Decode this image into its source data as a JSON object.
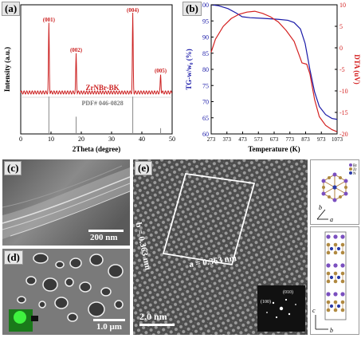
{
  "panels": {
    "a": {
      "label": "(a)",
      "chart_data": {
        "type": "line",
        "xlabel": "2Theta (degree)",
        "ylabel": "Intensity (a.u.)",
        "xlim": [
          0,
          50
        ],
        "xticks": [
          0,
          10,
          20,
          30,
          40,
          50
        ],
        "peaks": [
          {
            "x": 9.3,
            "height": 0.86,
            "label": "(001)"
          },
          {
            "x": 18.3,
            "height": 0.48,
            "label": "(002)"
          },
          {
            "x": 37.0,
            "height": 0.98,
            "label": "(004)"
          },
          {
            "x": 46.2,
            "height": 0.22,
            "label": "(005)"
          }
        ],
        "series_label": "ZrNBr-BK",
        "reference_label": "PDF# 046-0828",
        "reference_lines": [
          {
            "x": 9.3,
            "height": 0.26
          },
          {
            "x": 18.3,
            "height": 0.12
          },
          {
            "x": 37.0,
            "height": 0.26
          },
          {
            "x": 46.2,
            "height": 0.04
          }
        ],
        "series_color": "#cc2222",
        "reference_color": "#888888"
      }
    },
    "b": {
      "label": "(b)",
      "chart_data": {
        "type": "line",
        "xlabel": "Temperature (K)",
        "ylabel_left": "TG-w/w₀ (%)",
        "ylabel_right": "DTA (uV)",
        "xlim": [
          273,
          1073
        ],
        "xticks": [
          273,
          373,
          473,
          573,
          673,
          773,
          873,
          973,
          1073
        ],
        "ylim_left": [
          60,
          100
        ],
        "yticks_left": [
          60,
          65,
          70,
          75,
          80,
          85,
          90,
          95,
          100
        ],
        "ylim_right": [
          -20,
          10
        ],
        "yticks_right": [
          -20,
          -15,
          -10,
          -5,
          0,
          5,
          10
        ],
        "series": [
          {
            "name": "TG",
            "axis": "left",
            "color": "#1a1aa8",
            "x": [
              273,
              320,
              380,
              430,
              470,
              520,
              600,
              700,
              760,
              800,
              840,
              870,
              900,
              930,
              960,
              1000,
              1040,
              1073
            ],
            "y": [
              100,
              99.7,
              98.8,
              97.5,
              96.3,
              96.0,
              95.8,
              95.5,
              95.2,
              94.5,
              92.5,
              88.0,
              80.0,
              73.0,
              68.5,
              66.0,
              64.8,
              64.5
            ]
          },
          {
            "name": "DTA",
            "axis": "right",
            "color": "#d42020",
            "x": [
              273,
              300,
              350,
              400,
              450,
              500,
              550,
              600,
              650,
              700,
              750,
              800,
              850,
              880,
              900,
              930,
              960,
              1000,
              1040,
              1073
            ],
            "y": [
              -1.0,
              2.0,
              5.0,
              6.8,
              7.8,
              8.3,
              8.5,
              8.0,
              7.2,
              6.0,
              4.0,
              1.5,
              -3.5,
              -3.8,
              -6.0,
              -12.0,
              -16.0,
              -18.0,
              -19.0,
              -19.5
            ]
          }
        ]
      }
    },
    "c": {
      "label": "(c)",
      "scale": "200 nm"
    },
    "d": {
      "label": "(d)",
      "scale": "1.0 μm"
    },
    "e": {
      "label": "(e)",
      "scale": "2.0 nm",
      "lattice_a": "a = 0.363 nm",
      "lattice_b": "b = 0.363 nm",
      "fft_labels": [
        "(100)",
        "(010)"
      ],
      "crystal_top": {
        "axes": [
          "b",
          "a"
        ],
        "legend": [
          "Br",
          "Zr",
          "N"
        ]
      },
      "crystal_bottom": {
        "axes": [
          "c",
          "b"
        ]
      }
    }
  }
}
